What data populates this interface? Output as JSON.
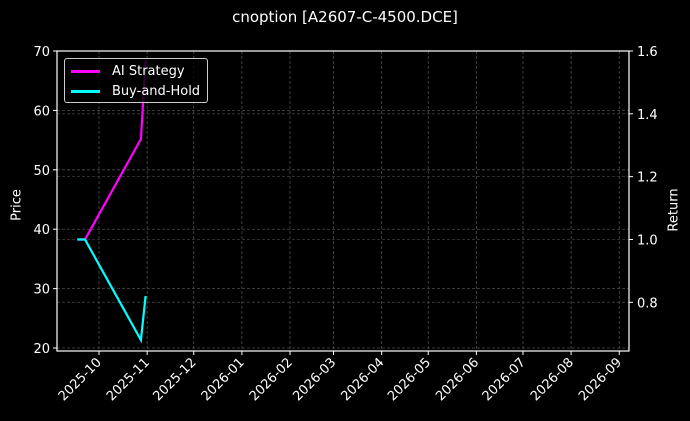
{
  "chart_data": {
    "type": "line",
    "title": "cnoption [A2607-C-4500.DCE]",
    "xlabel": "",
    "ylabel_left": "Price",
    "ylabel_right": "Return",
    "ylim_left": [
      19.5,
      70
    ],
    "ylim_right": [
      0.645,
      1.6
    ],
    "yticks_left": [
      20,
      30,
      40,
      50,
      60,
      70
    ],
    "yticks_right": [
      0.8,
      1.0,
      1.2,
      1.4,
      1.6
    ],
    "xticks": [
      "2025-10",
      "2025-11",
      "2025-12",
      "2026-01",
      "2026-02",
      "2026-03",
      "2026-04",
      "2026-05",
      "2026-06",
      "2026-07",
      "2026-08",
      "2026-09"
    ],
    "grid": true,
    "legend_position": "upper left",
    "series": [
      {
        "name": "AI Strategy",
        "axis": "right",
        "color": "#ff00ff",
        "x": [
          "2025-09-17",
          "2025-09-22",
          "2025-10-28",
          "2025-10-31"
        ],
        "values": [
          1.0,
          1.0,
          1.32,
          1.57
        ]
      },
      {
        "name": "Buy-and-Hold",
        "axis": "right",
        "color": "#00ffff",
        "x": [
          "2025-09-17",
          "2025-09-22",
          "2025-10-28",
          "2025-10-31"
        ],
        "values": [
          1.0,
          1.0,
          0.68,
          0.82
        ]
      }
    ]
  },
  "legend": {
    "items": [
      {
        "label": "AI Strategy",
        "color": "#ff00ff"
      },
      {
        "label": "Buy-and-Hold",
        "color": "#00ffff"
      }
    ]
  },
  "colors": {
    "background": "#000000",
    "axis": "#ffffff",
    "grid": "#555555"
  }
}
